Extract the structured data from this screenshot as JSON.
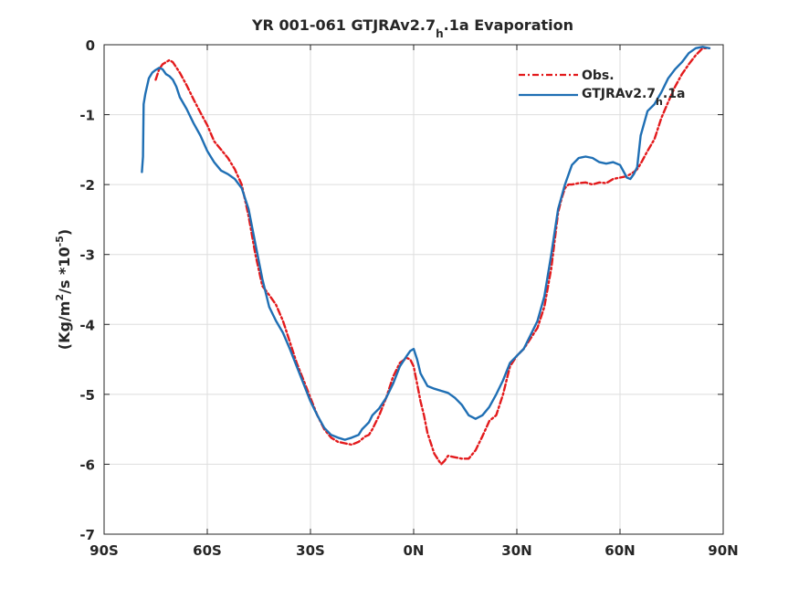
{
  "chart_data": {
    "type": "line",
    "title": "YR 001-061 GTJRAv2.7_h.1a Evaporation",
    "title_parts": [
      "YR 001-061 GTJRAv2.7",
      "h",
      ".1a Evaporation"
    ],
    "xlabel": "",
    "ylabel": "(Kg/m^2/s *10^-5)",
    "ylabel_parts": [
      "(Kg/m",
      "2",
      "/s *10",
      "-5",
      ")"
    ],
    "xlim": [
      -90,
      90
    ],
    "ylim": [
      -7,
      0
    ],
    "x_ticks": [
      -90,
      -60,
      -30,
      0,
      30,
      60,
      90
    ],
    "x_tick_labels": [
      "90S",
      "60S",
      "30S",
      "0N",
      "30N",
      "60N",
      "90N"
    ],
    "y_ticks": [
      -7,
      -6,
      -5,
      -4,
      -3,
      -2,
      -1,
      0
    ],
    "y_tick_labels": [
      "-7",
      "-6",
      "-5",
      "-4",
      "-3",
      "-2",
      "-1",
      "0"
    ],
    "grid": true,
    "legend_position": "top-right",
    "series": [
      {
        "name": "Obs.",
        "color": "#e31a1c",
        "style": "dashdot",
        "x": [
          -75,
          -74,
          -73,
          -72,
          -71,
          -70,
          -68,
          -66,
          -64,
          -62,
          -60,
          -58,
          -56,
          -54,
          -52,
          -50,
          -48,
          -46,
          -44,
          -42,
          -40,
          -38,
          -36,
          -34,
          -32,
          -30,
          -28,
          -26,
          -24,
          -22,
          -20,
          -18,
          -16,
          -14,
          -13,
          -12,
          -10,
          -8,
          -6,
          -4,
          -2,
          -1,
          0,
          1,
          2,
          3,
          4,
          6,
          8,
          9,
          10,
          12,
          14,
          16,
          18,
          20,
          22,
          24,
          26,
          28,
          30,
          32,
          34,
          36,
          38,
          40,
          42,
          43,
          44,
          45,
          46,
          48,
          50,
          52,
          54,
          56,
          58,
          60,
          62,
          64,
          65,
          66,
          68,
          70,
          72,
          74,
          76,
          78,
          80,
          82,
          84,
          86
        ],
        "y": [
          -0.5,
          -0.35,
          -0.28,
          -0.25,
          -0.22,
          -0.25,
          -0.4,
          -0.58,
          -0.78,
          -0.97,
          -1.15,
          -1.38,
          -1.5,
          -1.62,
          -1.78,
          -2.0,
          -2.45,
          -3.0,
          -3.45,
          -3.58,
          -3.72,
          -3.95,
          -4.25,
          -4.55,
          -4.8,
          -5.05,
          -5.3,
          -5.5,
          -5.62,
          -5.68,
          -5.7,
          -5.72,
          -5.68,
          -5.6,
          -5.58,
          -5.5,
          -5.3,
          -5.05,
          -4.75,
          -4.55,
          -4.48,
          -4.5,
          -4.6,
          -4.85,
          -5.1,
          -5.3,
          -5.55,
          -5.85,
          -6.0,
          -5.95,
          -5.88,
          -5.9,
          -5.92,
          -5.92,
          -5.8,
          -5.6,
          -5.38,
          -5.3,
          -5.0,
          -4.6,
          -4.45,
          -4.35,
          -4.2,
          -4.05,
          -3.75,
          -3.2,
          -2.4,
          -2.2,
          -2.05,
          -2.0,
          -2.0,
          -1.98,
          -1.97,
          -2.0,
          -1.97,
          -1.98,
          -1.92,
          -1.9,
          -1.88,
          -1.82,
          -1.78,
          -1.7,
          -1.52,
          -1.35,
          -1.05,
          -0.82,
          -0.6,
          -0.42,
          -0.28,
          -0.15,
          -0.05,
          -0.05
        ]
      },
      {
        "name": "GTJRAv2.7_h.1a",
        "name_parts": [
          "GTJRAv2.7",
          "h",
          ".1a"
        ],
        "color": "#1f6fb4",
        "style": "solid",
        "x": [
          -79,
          -78.7,
          -78.5,
          -78,
          -77,
          -76,
          -75,
          -74,
          -73,
          -72,
          -71,
          -70,
          -69,
          -68,
          -66,
          -64,
          -62,
          -60,
          -58,
          -56,
          -54,
          -52,
          -50,
          -48,
          -46,
          -44,
          -42,
          -40,
          -38,
          -36,
          -34,
          -32,
          -30,
          -28,
          -26,
          -24,
          -22,
          -20,
          -18,
          -16,
          -15,
          -14,
          -13,
          -12,
          -10,
          -8,
          -6,
          -4,
          -2,
          -1,
          0,
          1,
          2,
          4,
          6,
          8,
          10,
          12,
          14,
          16,
          18,
          20,
          22,
          24,
          26,
          28,
          30,
          32,
          34,
          36,
          38,
          40,
          42,
          44,
          46,
          48,
          50,
          52,
          54,
          56,
          58,
          60,
          62,
          63,
          64,
          65,
          66,
          68,
          70,
          72,
          74,
          76,
          78,
          80,
          82,
          84,
          86
        ],
        "y": [
          -1.82,
          -1.6,
          -0.85,
          -0.7,
          -0.48,
          -0.4,
          -0.36,
          -0.33,
          -0.35,
          -0.42,
          -0.45,
          -0.5,
          -0.6,
          -0.75,
          -0.92,
          -1.12,
          -1.3,
          -1.52,
          -1.68,
          -1.8,
          -1.85,
          -1.92,
          -2.05,
          -2.35,
          -2.85,
          -3.35,
          -3.75,
          -3.95,
          -4.12,
          -4.35,
          -4.6,
          -4.85,
          -5.1,
          -5.3,
          -5.48,
          -5.58,
          -5.62,
          -5.65,
          -5.62,
          -5.58,
          -5.5,
          -5.45,
          -5.4,
          -5.3,
          -5.2,
          -5.05,
          -4.85,
          -4.6,
          -4.45,
          -4.38,
          -4.35,
          -4.5,
          -4.7,
          -4.88,
          -4.92,
          -4.95,
          -4.98,
          -5.05,
          -5.15,
          -5.3,
          -5.35,
          -5.3,
          -5.18,
          -5.0,
          -4.8,
          -4.55,
          -4.45,
          -4.35,
          -4.15,
          -3.95,
          -3.6,
          -3.0,
          -2.35,
          -2.0,
          -1.72,
          -1.62,
          -1.6,
          -1.62,
          -1.68,
          -1.7,
          -1.68,
          -1.72,
          -1.9,
          -1.92,
          -1.85,
          -1.75,
          -1.3,
          -0.95,
          -0.85,
          -0.68,
          -0.48,
          -0.35,
          -0.25,
          -0.12,
          -0.05,
          -0.03,
          -0.05
        ]
      }
    ]
  }
}
